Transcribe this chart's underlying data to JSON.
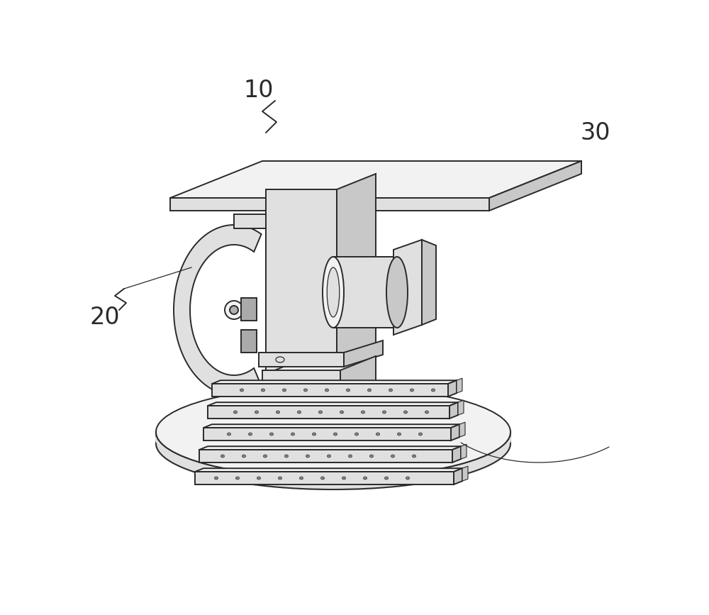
{
  "background_color": "#ffffff",
  "line_color": "#2a2a2a",
  "fill_light": "#f2f2f2",
  "fill_mid": "#e0e0e0",
  "fill_dark": "#c8c8c8",
  "fill_darker": "#b0b0b0",
  "label_10": "10",
  "label_20": "20",
  "label_30": "30",
  "label_fontsize": 24,
  "figsize": [
    10.0,
    8.67
  ],
  "dpi": 100
}
